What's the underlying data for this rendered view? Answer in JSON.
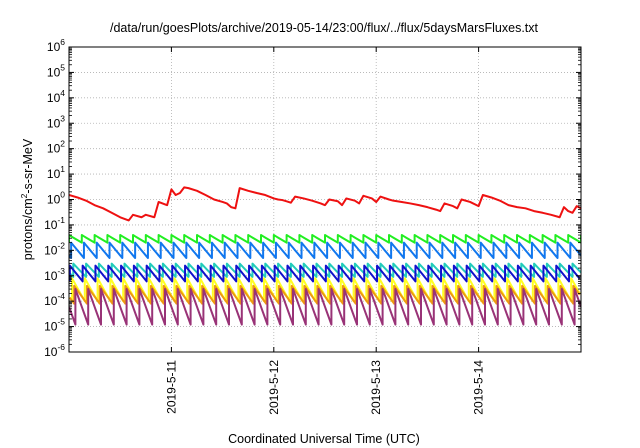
{
  "chart_data": {
    "type": "line",
    "title": "/data/run/goesPlots/archive/2019-05-14/23:00/flux/../flux/5daysMarsFluxes.txt",
    "xlabel": "Coordinated Universal Time (UTC)",
    "ylabel": "protons/cm²-s-sr-MeV",
    "ylabel_parts": {
      "pre": "protons/cm",
      "sup": "2",
      "post": "-s-sr-MeV"
    },
    "yscale": "log",
    "ylim": [
      1e-06,
      1000000.0
    ],
    "xlim": [
      "2019-05-10 00:00",
      "2019-05-15 00:00"
    ],
    "grid": true,
    "x_ticks": [
      {
        "label": "2019-5-11",
        "x": "2019-05-11 00:00"
      },
      {
        "label": "2019-5-12",
        "x": "2019-05-12 00:00"
      },
      {
        "label": "2019-5-13",
        "x": "2019-05-13 00:00"
      },
      {
        "label": "2019-5-14",
        "x": "2019-05-14 00:00"
      }
    ],
    "y_ticks": [
      {
        "base": "10",
        "exp": "-6",
        "value": 1e-06
      },
      {
        "base": "10",
        "exp": "-5",
        "value": 1e-05
      },
      {
        "base": "10",
        "exp": "-4",
        "value": 0.0001
      },
      {
        "base": "10",
        "exp": "-3",
        "value": 0.001
      },
      {
        "base": "10",
        "exp": "-2",
        "value": 0.01
      },
      {
        "base": "10",
        "exp": "-1",
        "value": 0.1
      },
      {
        "base": "10",
        "exp": "0",
        "value": 1
      },
      {
        "base": "10",
        "exp": "1",
        "value": 10
      },
      {
        "base": "10",
        "exp": "2",
        "value": 100
      },
      {
        "base": "10",
        "exp": "3",
        "value": 1000
      },
      {
        "base": "10",
        "exp": "4",
        "value": 10000
      },
      {
        "base": "10",
        "exp": "5",
        "value": 100000
      },
      {
        "base": "10",
        "exp": "6",
        "value": 1000000
      }
    ],
    "series": [
      {
        "color": "#ee1111",
        "points": [
          [
            "2019-05-10 00:00",
            1.5
          ],
          [
            "2019-05-10 02:00",
            1.2
          ],
          [
            "2019-05-10 04:00",
            0.9
          ],
          [
            "2019-05-10 06:00",
            0.6
          ],
          [
            "2019-05-10 08:00",
            0.45
          ],
          [
            "2019-05-10 10:00",
            0.3
          ],
          [
            "2019-05-10 12:00",
            0.2
          ],
          [
            "2019-05-10 14:00",
            0.15
          ],
          [
            "2019-05-10 15:00",
            0.25
          ],
          [
            "2019-05-10 17:00",
            0.2
          ],
          [
            "2019-05-10 18:00",
            0.25
          ],
          [
            "2019-05-10 20:00",
            0.2
          ],
          [
            "2019-05-10 21:00",
            0.8
          ],
          [
            "2019-05-10 23:00",
            0.6
          ],
          [
            "2019-05-11 00:00",
            2.5
          ],
          [
            "2019-05-11 01:00",
            1.5
          ],
          [
            "2019-05-11 02:00",
            1.8
          ],
          [
            "2019-05-11 03:00",
            3.0
          ],
          [
            "2019-05-11 04:00",
            2.8
          ],
          [
            "2019-05-11 06:00",
            2.2
          ],
          [
            "2019-05-11 08:00",
            1.5
          ],
          [
            "2019-05-11 10:00",
            1.0
          ],
          [
            "2019-05-11 12:00",
            0.8
          ],
          [
            "2019-05-11 13:00",
            0.7
          ],
          [
            "2019-05-11 14:00",
            0.5
          ],
          [
            "2019-05-11 15:00",
            0.45
          ],
          [
            "2019-05-11 16:00",
            2.8
          ],
          [
            "2019-05-11 18:00",
            2.2
          ],
          [
            "2019-05-11 20:00",
            1.8
          ],
          [
            "2019-05-11 22:00",
            1.5
          ],
          [
            "2019-05-12 00:00",
            1.1
          ],
          [
            "2019-05-12 01:00",
            1.0
          ],
          [
            "2019-05-12 02:00",
            0.95
          ],
          [
            "2019-05-12 03:00",
            0.85
          ],
          [
            "2019-05-12 04:00",
            0.75
          ],
          [
            "2019-05-12 05:00",
            1.3
          ],
          [
            "2019-05-12 07:00",
            1.1
          ],
          [
            "2019-05-12 09:00",
            0.9
          ],
          [
            "2019-05-12 11:00",
            0.7
          ],
          [
            "2019-05-12 12:00",
            0.6
          ],
          [
            "2019-05-12 13:00",
            1.0
          ],
          [
            "2019-05-12 15:00",
            0.85
          ],
          [
            "2019-05-12 16:00",
            0.6
          ],
          [
            "2019-05-12 17:00",
            1.1
          ],
          [
            "2019-05-12 19:00",
            0.9
          ],
          [
            "2019-05-12 20:00",
            0.7
          ],
          [
            "2019-05-12 21:00",
            1.4
          ],
          [
            "2019-05-12 23:00",
            1.1
          ],
          [
            "2019-05-13 00:00",
            0.8
          ],
          [
            "2019-05-13 01:00",
            1.3
          ],
          [
            "2019-05-13 03:00",
            1.0
          ],
          [
            "2019-05-13 04:00",
            0.9
          ],
          [
            "2019-05-13 06:00",
            0.8
          ],
          [
            "2019-05-13 08:00",
            0.7
          ],
          [
            "2019-05-13 10:00",
            0.6
          ],
          [
            "2019-05-13 12:00",
            0.5
          ],
          [
            "2019-05-13 14:00",
            0.4
          ],
          [
            "2019-05-13 15:00",
            0.35
          ],
          [
            "2019-05-13 16:00",
            0.7
          ],
          [
            "2019-05-13 18:00",
            0.55
          ],
          [
            "2019-05-13 19:00",
            0.45
          ],
          [
            "2019-05-13 20:00",
            1.0
          ],
          [
            "2019-05-13 22:00",
            0.8
          ],
          [
            "2019-05-14 00:00",
            0.55
          ],
          [
            "2019-05-14 01:00",
            1.5
          ],
          [
            "2019-05-14 03:00",
            1.2
          ],
          [
            "2019-05-14 05:00",
            0.9
          ],
          [
            "2019-05-14 07:00",
            0.6
          ],
          [
            "2019-05-14 09:00",
            0.5
          ],
          [
            "2019-05-14 11:00",
            0.45
          ],
          [
            "2019-05-14 13:00",
            0.35
          ],
          [
            "2019-05-14 15:00",
            0.3
          ],
          [
            "2019-05-14 17:00",
            0.25
          ],
          [
            "2019-05-14 19:00",
            0.2
          ],
          [
            "2019-05-14 20:00",
            0.5
          ],
          [
            "2019-05-14 21:00",
            0.35
          ],
          [
            "2019-05-14 22:00",
            0.3
          ],
          [
            "2019-05-14 23:00",
            0.55
          ],
          [
            "2019-05-15 00:00",
            0.45
          ]
        ]
      },
      {
        "color": "#22ee22",
        "high": 0.04,
        "low": 0.02,
        "period_hours": 3,
        "phase_hours": 0
      },
      {
        "color": "#1177ee",
        "high": 0.02,
        "low": 0.005,
        "period_hours": 3,
        "phase_hours": 0.5
      },
      {
        "color": "#22ccbb",
        "high": 0.003,
        "low": 0.0009,
        "period_hours": 3,
        "phase_hours": 1.0
      },
      {
        "color": "#1111cc",
        "high": 0.0025,
        "low": 0.0006,
        "period_hours": 3,
        "phase_hours": 0.2
      },
      {
        "color": "#ffff22",
        "high": 0.0008,
        "low": 0.0001,
        "period_hours": 3,
        "phase_hours": 0.7
      },
      {
        "color": "#ee9911",
        "high": 0.0004,
        "low": 8e-05,
        "period_hours": 3,
        "phase_hours": 1.2
      },
      {
        "color": "#993377",
        "high": 0.0003,
        "low": 1.2e-05,
        "period_hours": 3,
        "phase_hours": 1.5
      }
    ]
  }
}
